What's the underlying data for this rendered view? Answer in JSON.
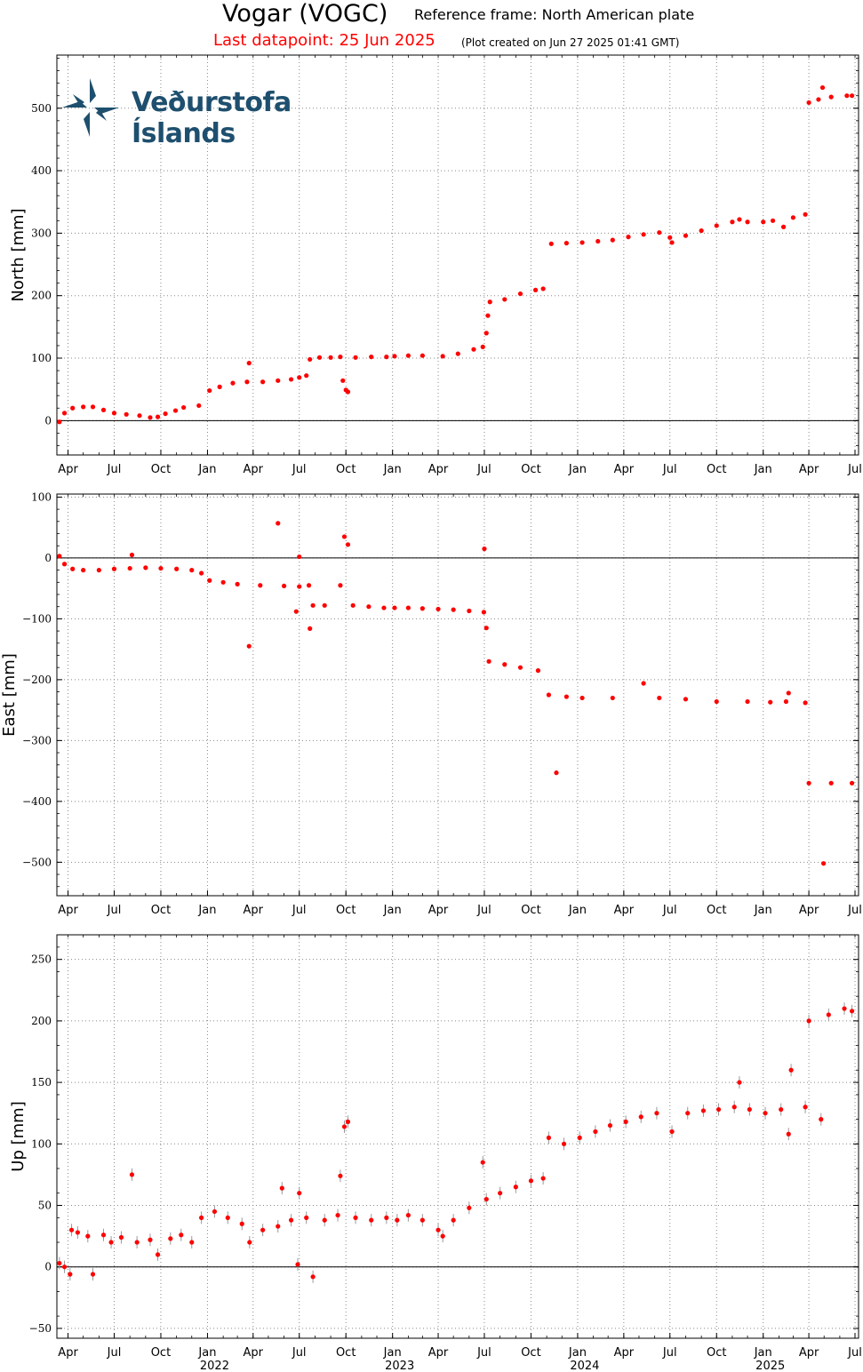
{
  "header": {
    "title": "Vogar (VOGC)",
    "reference_frame": "Reference frame: North American plate",
    "last_datapoint": "Last datapoint: 25 Jun 2025",
    "created": "(Plot created on Jun 27 2025 01:41 GMT)"
  },
  "logo": {
    "text": "Veðurstofa Íslands",
    "icon": "compass-star-icon"
  },
  "colors": {
    "points": "#ff0000",
    "errorbars": "#999999",
    "grid": "#888888",
    "zero_line": "#000000"
  },
  "x_axis": {
    "month_ticks": [
      "Apr",
      "Jul",
      "Oct",
      "Jan",
      "Apr",
      "Jul",
      "Oct",
      "Jan",
      "Apr",
      "Jul",
      "Oct",
      "Jan",
      "Apr",
      "Jul",
      "Oct",
      "Jan",
      "Apr",
      "Jul"
    ],
    "year_labels": [
      "2022",
      "2023",
      "2024",
      "2025"
    ]
  },
  "chart_data": [
    {
      "type": "scatter",
      "ylabel": "North [mm]",
      "ylim": [
        -55,
        585
      ],
      "yticks": [
        0,
        100,
        200,
        300,
        400,
        500
      ],
      "xlim": [
        "2021-03-10",
        "2025-07-08"
      ],
      "grid": true,
      "series": [
        {
          "points": [
            [
              "2021-03-15",
              -2
            ],
            [
              "2021-03-25",
              12
            ],
            [
              "2021-04-10",
              20
            ],
            [
              "2021-05-01",
              22
            ],
            [
              "2021-05-20",
              22
            ],
            [
              "2021-06-10",
              17
            ],
            [
              "2021-07-01",
              12
            ],
            [
              "2021-07-25",
              10
            ],
            [
              "2021-08-20",
              8
            ],
            [
              "2021-09-10",
              5
            ],
            [
              "2021-09-25",
              6
            ],
            [
              "2021-10-10",
              11
            ],
            [
              "2021-10-30",
              16
            ],
            [
              "2021-11-15",
              21
            ],
            [
              "2021-12-15",
              24
            ],
            [
              "2022-01-05",
              48
            ],
            [
              "2022-01-25",
              54
            ],
            [
              "2022-02-20",
              60
            ],
            [
              "2022-03-20",
              62
            ],
            [
              "2022-03-24",
              92
            ],
            [
              "2022-04-20",
              62
            ],
            [
              "2022-05-20",
              64
            ],
            [
              "2022-06-15",
              66
            ],
            [
              "2022-07-01",
              69
            ],
            [
              "2022-07-15",
              72
            ],
            [
              "2022-07-22",
              98
            ],
            [
              "2022-08-10",
              101
            ],
            [
              "2022-09-01",
              101
            ],
            [
              "2022-09-20",
              102
            ],
            [
              "2022-09-25",
              64
            ],
            [
              "2022-10-01",
              49
            ],
            [
              "2022-10-05",
              46
            ],
            [
              "2022-10-20",
              101
            ],
            [
              "2022-11-20",
              102
            ],
            [
              "2022-12-20",
              102
            ],
            [
              "2023-01-05",
              103
            ],
            [
              "2023-02-01",
              104
            ],
            [
              "2023-03-01",
              104
            ],
            [
              "2023-04-10",
              103
            ],
            [
              "2023-05-10",
              107
            ],
            [
              "2023-06-10",
              114
            ],
            [
              "2023-06-28",
              118
            ],
            [
              "2023-07-05",
              140
            ],
            [
              "2023-07-08",
              168
            ],
            [
              "2023-07-12",
              190
            ],
            [
              "2023-08-10",
              194
            ],
            [
              "2023-09-10",
              203
            ],
            [
              "2023-10-10",
              209
            ],
            [
              "2023-10-25",
              211
            ],
            [
              "2023-11-10",
              283
            ],
            [
              "2023-12-10",
              284
            ],
            [
              "2024-01-10",
              285
            ],
            [
              "2024-02-10",
              287
            ],
            [
              "2024-03-10",
              289
            ],
            [
              "2024-04-10",
              294
            ],
            [
              "2024-05-10",
              298
            ],
            [
              "2024-06-10",
              301
            ],
            [
              "2024-07-01",
              293
            ],
            [
              "2024-07-05",
              285
            ],
            [
              "2024-08-01",
              296
            ],
            [
              "2024-09-01",
              304
            ],
            [
              "2024-10-01",
              312
            ],
            [
              "2024-11-01",
              318
            ],
            [
              "2024-11-15",
              322
            ],
            [
              "2024-12-01",
              318
            ],
            [
              "2025-01-01",
              318
            ],
            [
              "2025-01-20",
              320
            ],
            [
              "2025-02-10",
              310
            ],
            [
              "2025-03-01",
              325
            ],
            [
              "2025-03-25",
              330
            ],
            [
              "2025-04-01",
              509
            ],
            [
              "2025-04-20",
              514
            ],
            [
              "2025-04-28",
              533
            ],
            [
              "2025-05-15",
              518
            ],
            [
              "2025-06-15",
              520
            ],
            [
              "2025-06-25",
              520
            ]
          ]
        }
      ]
    },
    {
      "type": "scatter",
      "ylabel": "East [mm]",
      "ylim": [
        -555,
        105
      ],
      "yticks": [
        -500,
        -400,
        -300,
        -200,
        -100,
        0,
        100
      ],
      "xlim": [
        "2021-03-10",
        "2025-07-08"
      ],
      "grid": true,
      "series": [
        {
          "points": [
            [
              "2021-03-15",
              3
            ],
            [
              "2021-03-25",
              -10
            ],
            [
              "2021-04-10",
              -18
            ],
            [
              "2021-05-01",
              -20
            ],
            [
              "2021-06-01",
              -20
            ],
            [
              "2021-07-01",
              -18
            ],
            [
              "2021-08-01",
              -17
            ],
            [
              "2021-08-05",
              5
            ],
            [
              "2021-09-01",
              -16
            ],
            [
              "2021-10-01",
              -17
            ],
            [
              "2021-11-01",
              -18
            ],
            [
              "2021-12-01",
              -20
            ],
            [
              "2021-12-20",
              -25
            ],
            [
              "2022-01-05",
              -37
            ],
            [
              "2022-02-01",
              -40
            ],
            [
              "2022-03-01",
              -43
            ],
            [
              "2022-03-24",
              -145
            ],
            [
              "2022-04-15",
              -45
            ],
            [
              "2022-05-20",
              57
            ],
            [
              "2022-06-01",
              -46
            ],
            [
              "2022-06-25",
              -88
            ],
            [
              "2022-07-01",
              -47
            ],
            [
              "2022-07-01",
              2
            ],
            [
              "2022-07-20",
              -45
            ],
            [
              "2022-07-22",
              -116
            ],
            [
              "2022-07-28",
              -78
            ],
            [
              "2022-08-20",
              -78
            ],
            [
              "2022-09-20",
              -45
            ],
            [
              "2022-09-28",
              35
            ],
            [
              "2022-10-05",
              22
            ],
            [
              "2022-10-15",
              -78
            ],
            [
              "2022-11-15",
              -80
            ],
            [
              "2022-12-15",
              -82
            ],
            [
              "2023-01-05",
              -82
            ],
            [
              "2023-02-01",
              -82
            ],
            [
              "2023-03-01",
              -83
            ],
            [
              "2023-04-01",
              -84
            ],
            [
              "2023-05-01",
              -85
            ],
            [
              "2023-06-01",
              -87
            ],
            [
              "2023-06-30",
              -89
            ],
            [
              "2023-07-01",
              15
            ],
            [
              "2023-07-05",
              -115
            ],
            [
              "2023-07-10",
              -170
            ],
            [
              "2023-08-10",
              -175
            ],
            [
              "2023-09-10",
              -180
            ],
            [
              "2023-10-15",
              -185
            ],
            [
              "2023-11-05",
              -225
            ],
            [
              "2023-11-20",
              -353
            ],
            [
              "2023-12-10",
              -228
            ],
            [
              "2024-01-10",
              -230
            ],
            [
              "2024-03-10",
              -230
            ],
            [
              "2024-05-10",
              -206
            ],
            [
              "2024-06-10",
              -230
            ],
            [
              "2024-08-01",
              -232
            ],
            [
              "2024-10-01",
              -236
            ],
            [
              "2024-12-01",
              -236
            ],
            [
              "2025-01-15",
              -237
            ],
            [
              "2025-02-15",
              -236
            ],
            [
              "2025-02-20",
              -222
            ],
            [
              "2025-03-25",
              -238
            ],
            [
              "2025-04-01",
              -370
            ],
            [
              "2025-04-30",
              -502
            ],
            [
              "2025-05-15",
              -370
            ],
            [
              "2025-06-25",
              -370
            ]
          ]
        }
      ]
    },
    {
      "type": "scatter",
      "ylabel": "Up [mm]",
      "ylim": [
        -58,
        270
      ],
      "yticks": [
        -50,
        0,
        50,
        100,
        150,
        200,
        250
      ],
      "xlim": [
        "2021-03-10",
        "2025-07-08"
      ],
      "grid": true,
      "series": [
        {
          "points": [
            [
              "2021-03-15",
              3
            ],
            [
              "2021-03-25",
              0
            ],
            [
              "2021-04-05",
              -6
            ],
            [
              "2021-04-08",
              30
            ],
            [
              "2021-04-20",
              28
            ],
            [
              "2021-05-10",
              25
            ],
            [
              "2021-05-20",
              -6
            ],
            [
              "2021-06-10",
              26
            ],
            [
              "2021-06-25",
              20
            ],
            [
              "2021-07-15",
              24
            ],
            [
              "2021-08-05",
              75
            ],
            [
              "2021-08-15",
              20
            ],
            [
              "2021-09-10",
              22
            ],
            [
              "2021-09-25",
              10
            ],
            [
              "2021-10-20",
              23
            ],
            [
              "2021-11-10",
              26
            ],
            [
              "2021-12-01",
              20
            ],
            [
              "2021-12-20",
              40
            ],
            [
              "2022-01-15",
              45
            ],
            [
              "2022-02-10",
              40
            ],
            [
              "2022-03-10",
              35
            ],
            [
              "2022-03-25",
              20
            ],
            [
              "2022-04-20",
              30
            ],
            [
              "2022-05-20",
              33
            ],
            [
              "2022-05-28",
              64
            ],
            [
              "2022-06-15",
              38
            ],
            [
              "2022-06-28",
              2
            ],
            [
              "2022-07-01",
              60
            ],
            [
              "2022-07-15",
              40
            ],
            [
              "2022-07-28",
              -8
            ],
            [
              "2022-08-20",
              38
            ],
            [
              "2022-09-15",
              42
            ],
            [
              "2022-09-20",
              74
            ],
            [
              "2022-09-28",
              114
            ],
            [
              "2022-10-05",
              118
            ],
            [
              "2022-10-20",
              40
            ],
            [
              "2022-11-20",
              38
            ],
            [
              "2022-12-20",
              40
            ],
            [
              "2023-01-10",
              38
            ],
            [
              "2023-02-01",
              42
            ],
            [
              "2023-03-01",
              38
            ],
            [
              "2023-04-01",
              30
            ],
            [
              "2023-04-10",
              25
            ],
            [
              "2023-05-01",
              38
            ],
            [
              "2023-06-01",
              48
            ],
            [
              "2023-06-28",
              85
            ],
            [
              "2023-07-05",
              55
            ],
            [
              "2023-08-01",
              60
            ],
            [
              "2023-09-01",
              65
            ],
            [
              "2023-10-01",
              70
            ],
            [
              "2023-10-25",
              72
            ],
            [
              "2023-11-05",
              105
            ],
            [
              "2023-12-05",
              100
            ],
            [
              "2024-01-05",
              105
            ],
            [
              "2024-02-05",
              110
            ],
            [
              "2024-03-05",
              115
            ],
            [
              "2024-04-05",
              118
            ],
            [
              "2024-05-05",
              122
            ],
            [
              "2024-06-05",
              125
            ],
            [
              "2024-07-05",
              110
            ],
            [
              "2024-08-05",
              125
            ],
            [
              "2024-09-05",
              127
            ],
            [
              "2024-10-05",
              128
            ],
            [
              "2024-11-05",
              130
            ],
            [
              "2024-11-15",
              150
            ],
            [
              "2024-12-05",
              128
            ],
            [
              "2025-01-05",
              125
            ],
            [
              "2025-02-05",
              128
            ],
            [
              "2025-02-20",
              108
            ],
            [
              "2025-02-25",
              160
            ],
            [
              "2025-03-25",
              130
            ],
            [
              "2025-04-01",
              200
            ],
            [
              "2025-04-25",
              120
            ],
            [
              "2025-05-10",
              205
            ],
            [
              "2025-06-10",
              210
            ],
            [
              "2025-06-25",
              208
            ]
          ]
        }
      ]
    }
  ]
}
